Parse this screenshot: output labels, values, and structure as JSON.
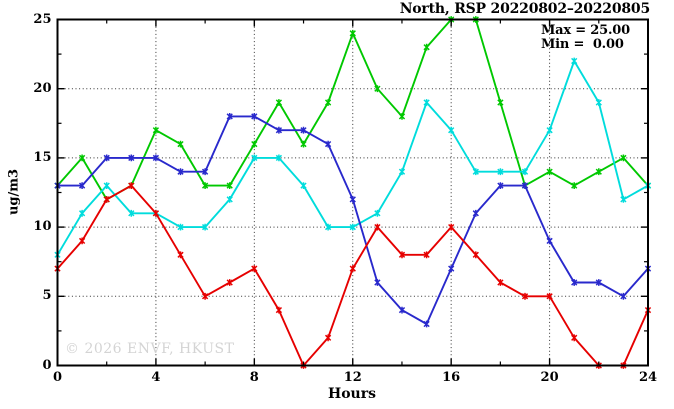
{
  "chart_data": {
    "type": "line",
    "title": "North, RSP 20220802–20220805",
    "xlabel": "Hours",
    "ylabel": "ug/m3",
    "xlim": [
      0,
      24
    ],
    "ylim": [
      0,
      25
    ],
    "grid": true,
    "x": [
      0,
      1,
      2,
      3,
      4,
      5,
      6,
      7,
      8,
      9,
      10,
      11,
      12,
      13,
      14,
      15,
      16,
      17,
      18,
      19,
      20,
      21,
      22,
      23,
      24
    ],
    "series": [
      {
        "name": "green-line",
        "color": "#00c800",
        "values": [
          13,
          15,
          12,
          13,
          17,
          16,
          13,
          13,
          16,
          19,
          16,
          19,
          24,
          20,
          18,
          23,
          25,
          25,
          19,
          13,
          14,
          13,
          14,
          15,
          13
        ]
      },
      {
        "name": "cyan-line",
        "color": "#00dcdc",
        "values": [
          8,
          11,
          13,
          11,
          11,
          10,
          10,
          12,
          15,
          15,
          13,
          10,
          10,
          11,
          14,
          19,
          17,
          14,
          14,
          14,
          17,
          22,
          19,
          12,
          13
        ]
      },
      {
        "name": "blue-line",
        "color": "#2929cc",
        "values": [
          13,
          13,
          15,
          15,
          15,
          14,
          14,
          18,
          18,
          17,
          17,
          16,
          12,
          6,
          4,
          3,
          7,
          11,
          13,
          13,
          9,
          6,
          6,
          5,
          7
        ]
      },
      {
        "name": "red-line",
        "color": "#e60000",
        "values": [
          7,
          9,
          12,
          13,
          11,
          8,
          5,
          6,
          7,
          4,
          0,
          2,
          7,
          10,
          8,
          8,
          10,
          8,
          6,
          5,
          5,
          2,
          0,
          0,
          4
        ]
      }
    ],
    "legend": {
      "position": "top-right",
      "max_label": "Max = 25.00",
      "min_label": "Min =  0.00"
    },
    "watermark": "© 2026 ENVF, HKUST",
    "axes": {
      "x_major_ticks": [
        0,
        4,
        8,
        12,
        16,
        20,
        24
      ],
      "x_tick_labels": [
        "0",
        "4",
        "8",
        "12",
        "16",
        "20",
        "24"
      ],
      "x_minor_ticks": [
        2,
        6,
        10,
        14,
        18,
        22
      ],
      "y_major_ticks": [
        0,
        5,
        10,
        15,
        20,
        25
      ],
      "y_tick_labels": [
        "0",
        "5",
        "10",
        "15",
        "20",
        "25"
      ],
      "y_minor_ticks": [
        2.5,
        7.5,
        12.5,
        17.5,
        22.5
      ],
      "x_gridlines": [
        4,
        8,
        12,
        16,
        20
      ],
      "y_gridlines": [
        5,
        10,
        15,
        20
      ]
    },
    "colors": {
      "axis": "#000000",
      "grid": "#333333",
      "background": "#ffffff",
      "watermark": "#d4d4d4"
    }
  }
}
